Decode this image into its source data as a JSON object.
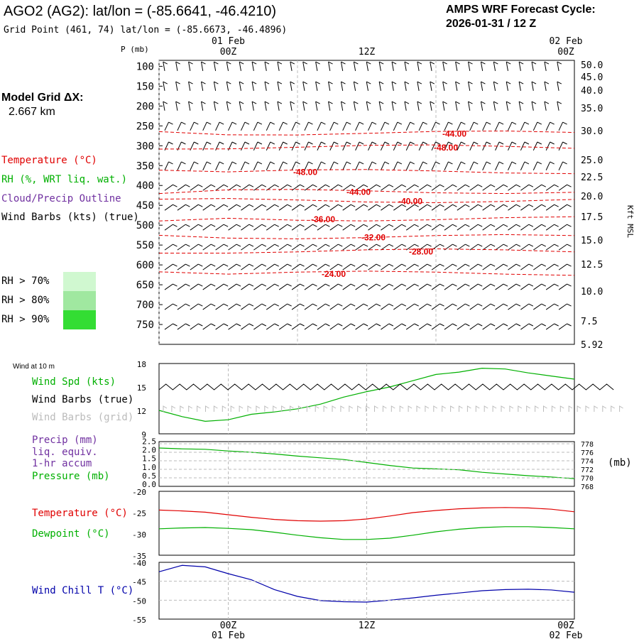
{
  "header": {
    "station": "AGO2 (AG2):  lat/lon = (-85.6641, -46.4210)",
    "grid_point": "Grid Point (461, 74) lat/lon = (-85.6673, -46.4896)",
    "cycle_label": "AMPS WRF Forecast Cycle:",
    "cycle_value": "2026-01-31 / 12  Z"
  },
  "left_labels": {
    "model_grid": "Model Grid ΔX:",
    "grid_dx": "2.667 km",
    "temperature": "Temperature (°C)",
    "rh": "RH (%, WRT liq. wat.)",
    "cloud": "Cloud/Precip Outline",
    "wind_barbs": "Wind Barbs (kts) (true)",
    "rh70": "RH > 70%",
    "rh80": "RH > 80%",
    "rh90": "RH > 90%",
    "wind_10m": "Wind at 10 m",
    "wind_spd": "Wind Spd (kts)",
    "wind_barbs_true": "Wind Barbs (true)",
    "wind_barbs_grid": "Wind Barbs (grid)",
    "precip": "Precip (mm)",
    "liq_equiv": "liq. equiv.",
    "accum": "1-hr accum",
    "pressure": "Pressure (mb)",
    "pressure_unit": "(mb)",
    "temp2": "Temperature (°C)",
    "dewpoint": "Dewpoint (°C)",
    "windchill": "Wind Chill T (°C)"
  },
  "colors": {
    "temperature": "#e00000",
    "rh": "#00b000",
    "cloud": "#7030a0",
    "rh70": "#d0f8d0",
    "rh80": "#a0e8a0",
    "rh90": "#33dd33",
    "windchill": "#0000aa",
    "grid_barbs": "#bbbbbb"
  },
  "chart_data": [
    {
      "type": "line",
      "name": "upper-air cross section",
      "ylabel": "P (mb)",
      "y2label": "Kft MSL",
      "y_ticks": [
        100,
        150,
        200,
        250,
        300,
        350,
        400,
        450,
        500,
        550,
        600,
        650,
        700,
        750
      ],
      "kft_ticks": [
        "50.0",
        "45.0",
        "40.0",
        "35.0",
        "30.0",
        "25.0",
        "22.5",
        "20.0",
        "17.5",
        "15.0",
        "12.5",
        "10.0",
        "7.5",
        "5.92"
      ],
      "x_top_labels": [
        "00Z",
        "12Z",
        "00Z"
      ],
      "date_top_labels": [
        "01 Feb",
        "02 Feb"
      ],
      "ylim": [
        800,
        85
      ],
      "isotherms": [
        {
          "label": "-44.00",
          "pressure": 268
        },
        {
          "label": "-48.00",
          "pressure": 303
        },
        {
          "label": "-48.00",
          "pressure": 365
        },
        {
          "label": "-44.00",
          "pressure": 415
        },
        {
          "label": "-40.00",
          "pressure": 438
        },
        {
          "label": "-36.00",
          "pressure": 484
        },
        {
          "label": "-32.00",
          "pressure": 529
        },
        {
          "label": "-28.00",
          "pressure": 565
        },
        {
          "label": "-24.00",
          "pressure": 621
        }
      ]
    },
    {
      "type": "line",
      "name": "wind",
      "y_ticks": [
        9,
        12,
        15,
        18
      ],
      "ylim": [
        9,
        18
      ],
      "x_hours": [
        0,
        2,
        4,
        6,
        8,
        10,
        12,
        14,
        16,
        18,
        20,
        22,
        24,
        26,
        28,
        30,
        32,
        34,
        36
      ],
      "wind_spd": [
        12.0,
        11.2,
        10.6,
        10.8,
        11.5,
        11.8,
        12.2,
        12.8,
        13.7,
        14.4,
        15.0,
        15.8,
        16.6,
        16.9,
        17.4,
        17.3,
        16.8,
        16.4,
        16.0
      ]
    },
    {
      "type": "line",
      "name": "precip-pressure",
      "y_ticks_left": [
        "0.0",
        "0.5",
        "1.0",
        "1.5",
        "2.0",
        "2.5"
      ],
      "y_ticks_right": [
        "768",
        "770",
        "772",
        "774",
        "776",
        "778"
      ],
      "ylim": [
        768,
        778.5
      ],
      "x_hours": [
        0,
        2,
        4,
        6,
        8,
        10,
        12,
        14,
        16,
        18,
        20,
        22,
        24,
        26,
        28,
        30,
        32,
        34,
        36
      ],
      "pressure": [
        777.0,
        776.8,
        776.7,
        776.3,
        776.0,
        775.6,
        775.1,
        774.7,
        774.3,
        773.6,
        772.9,
        772.3,
        772.1,
        771.9,
        771.3,
        770.9,
        770.5,
        770.2,
        769.8
      ]
    },
    {
      "type": "line",
      "name": "temperature-dewpoint",
      "y_ticks": [
        -20,
        -25,
        -30,
        -35
      ],
      "ylim": [
        -35,
        -20
      ],
      "x_hours": [
        0,
        2,
        4,
        6,
        8,
        10,
        12,
        14,
        16,
        18,
        20,
        22,
        24,
        26,
        28,
        30,
        32,
        34,
        36
      ],
      "temperature": [
        -24.4,
        -24.6,
        -24.9,
        -25.5,
        -26.1,
        -26.6,
        -26.9,
        -27.0,
        -26.9,
        -26.5,
        -25.8,
        -25.0,
        -24.5,
        -24.1,
        -23.9,
        -23.8,
        -23.9,
        -24.2,
        -24.8
      ],
      "dewpoint": [
        -28.8,
        -28.6,
        -28.5,
        -28.7,
        -29.0,
        -29.6,
        -30.3,
        -30.9,
        -31.3,
        -31.3,
        -31.0,
        -30.3,
        -29.5,
        -28.9,
        -28.5,
        -28.3,
        -28.3,
        -28.5,
        -28.8
      ]
    },
    {
      "type": "line",
      "name": "wind chill",
      "y_ticks": [
        -40,
        -45,
        -50,
        -55
      ],
      "ylim": [
        -55,
        -40
      ],
      "x_bottom_labels": [
        "00Z",
        "12Z",
        "00Z"
      ],
      "date_bottom_labels": [
        "01 Feb",
        "02 Feb"
      ],
      "x_hours": [
        0,
        2,
        4,
        6,
        8,
        10,
        12,
        14,
        16,
        18,
        20,
        22,
        24,
        26,
        28,
        30,
        32,
        34,
        36
      ],
      "windchill": [
        -42.5,
        -40.8,
        -41.2,
        -43.0,
        -44.6,
        -47.2,
        -49.0,
        -50.1,
        -50.4,
        -50.5,
        -50.0,
        -49.4,
        -48.7,
        -48.1,
        -47.5,
        -47.2,
        -47.1,
        -47.3,
        -47.9
      ]
    }
  ]
}
